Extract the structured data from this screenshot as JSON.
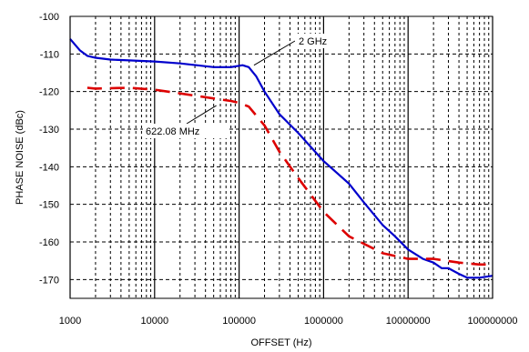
{
  "chart_data": {
    "type": "line",
    "xlabel": "OFFSET (Hz)",
    "ylabel": "PHASE NOISE (dBc)",
    "x_scale": "log",
    "xlim": [
      1000,
      100000000
    ],
    "ylim": [
      -175,
      -100
    ],
    "x_ticks": [
      1000,
      10000,
      100000,
      1000000,
      10000000,
      100000000
    ],
    "x_tick_labels": [
      "1000",
      "10000",
      "100000",
      "1000000",
      "10000000",
      "100000000"
    ],
    "y_ticks": [
      -100,
      -110,
      -120,
      -130,
      -140,
      -150,
      -160,
      -170
    ],
    "y_tick_labels": [
      "-100",
      "-110",
      "-120",
      "-130",
      "-140",
      "-150",
      "-160",
      "-170"
    ],
    "grid": "major solid, minor dashed",
    "series": [
      {
        "name": "2 GHz",
        "color": "#0000cc",
        "line_style": "solid",
        "points": [
          [
            1000,
            -106
          ],
          [
            1300,
            -109
          ],
          [
            1600,
            -110.5
          ],
          [
            2000,
            -111
          ],
          [
            3000,
            -111.5
          ],
          [
            5000,
            -111.7
          ],
          [
            10000,
            -112
          ],
          [
            20000,
            -112.5
          ],
          [
            50000,
            -113.5
          ],
          [
            80000,
            -113.5
          ],
          [
            110000,
            -113
          ],
          [
            130000,
            -113.5
          ],
          [
            160000,
            -116
          ],
          [
            200000,
            -120
          ],
          [
            300000,
            -126
          ],
          [
            500000,
            -131
          ],
          [
            1000000,
            -138.5
          ],
          [
            2000000,
            -144.5
          ],
          [
            3000000,
            -149.5
          ],
          [
            5000000,
            -155.5
          ],
          [
            7000000,
            -158.5
          ],
          [
            10000000,
            -162
          ],
          [
            15000000,
            -164.5
          ],
          [
            20000000,
            -165.5
          ],
          [
            25000000,
            -167
          ],
          [
            30000000,
            -167
          ],
          [
            40000000,
            -168.5
          ],
          [
            50000000,
            -169.5
          ],
          [
            70000000,
            -169.5
          ],
          [
            100000000,
            -169
          ]
        ]
      },
      {
        "name": "622.08 MHz",
        "color": "#dd0000",
        "line_style": "dashed",
        "points": [
          [
            1600,
            -119
          ],
          [
            2000,
            -119.2
          ],
          [
            5000,
            -119
          ],
          [
            10000,
            -119.5
          ],
          [
            20000,
            -120.5
          ],
          [
            40000,
            -121.5
          ],
          [
            80000,
            -122.5
          ],
          [
            100000,
            -123
          ],
          [
            130000,
            -124
          ],
          [
            200000,
            -129
          ],
          [
            300000,
            -136
          ],
          [
            500000,
            -143
          ],
          [
            1000000,
            -152
          ],
          [
            2000000,
            -158.5
          ],
          [
            5000000,
            -163
          ],
          [
            10000000,
            -164.5
          ],
          [
            20000000,
            -164.5
          ],
          [
            40000000,
            -165.5
          ],
          [
            70000000,
            -166
          ],
          [
            100000000,
            -166
          ]
        ]
      }
    ],
    "annotations": [
      {
        "text": "2 GHz",
        "x": 150000,
        "y": -113
      },
      {
        "text": "622.08 MHz",
        "x": 100000,
        "y": -123
      }
    ]
  }
}
